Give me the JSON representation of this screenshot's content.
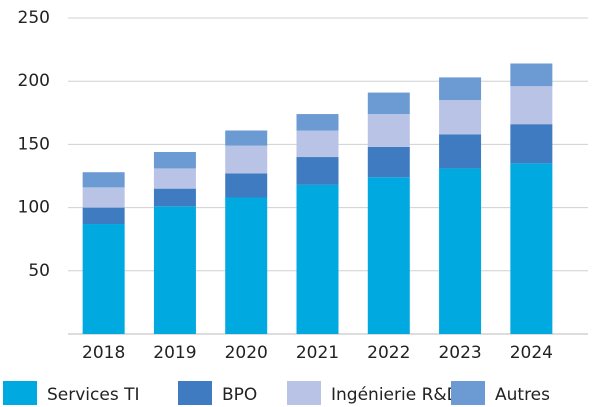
{
  "chart_data": {
    "type": "stacked_bar",
    "categories": [
      "2018",
      "2019",
      "2020",
      "2021",
      "2022",
      "2023",
      "2024"
    ],
    "series": [
      {
        "name": "Services TI",
        "color": "#00a9e0",
        "values": [
          87,
          101,
          108,
          118,
          124,
          131,
          135
        ]
      },
      {
        "name": "BPO",
        "color": "#3f7bc1",
        "values": [
          13,
          14,
          19,
          22,
          24,
          27,
          31
        ]
      },
      {
        "name": "Ingénierie R&D",
        "color": "#b9c3e6",
        "values": [
          16,
          16,
          22,
          21,
          26,
          27,
          30
        ]
      },
      {
        "name": "Autres",
        "color": "#6b9bd2",
        "values": [
          12,
          13,
          12,
          13,
          17,
          18,
          18
        ]
      }
    ],
    "ylim": [
      0,
      250
    ],
    "yticks": [
      50,
      100,
      150,
      200,
      250
    ],
    "grid": true,
    "legend": "bottom"
  }
}
